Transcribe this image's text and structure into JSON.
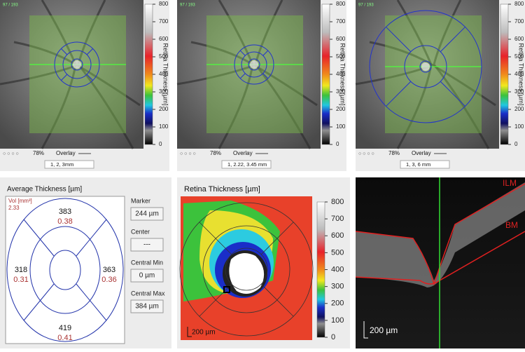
{
  "top_panels": [
    {
      "counter": "97 / 193",
      "colorbar_label": "Retina Thickness [µm]",
      "colorbar_ticks": [
        800,
        700,
        600,
        500,
        400,
        300,
        200,
        100,
        0
      ],
      "zoom": "78%",
      "overlay": "Overlay",
      "grid": "1, 2, 3mm"
    },
    {
      "counter": "97 / 193",
      "colorbar_label": "Retina Thickness [µm]",
      "colorbar_ticks": [
        800,
        700,
        600,
        500,
        400,
        300,
        200,
        100,
        0
      ],
      "zoom": "78%",
      "overlay": "Overlay",
      "grid": "1, 2.22, 3.45 mm"
    },
    {
      "counter": "97 / 193",
      "colorbar_label": "Retina Thickness [µm]",
      "colorbar_ticks": [
        800,
        700,
        600,
        500,
        400,
        300,
        200,
        100,
        0
      ],
      "zoom": "78%",
      "overlay": "Overlay",
      "grid": "1, 3, 6 mm"
    }
  ],
  "average_thickness": {
    "title": "Average Thickness [µm]",
    "vol_label": "Vol [mm³]",
    "vol": 2.33,
    "sectors": [
      {
        "thickness": 383,
        "volume": 0.38
      },
      {
        "thickness": 318,
        "volume": 0.31
      },
      {
        "thickness": 363,
        "volume": 0.36
      },
      {
        "thickness": 419,
        "volume": 0.41
      }
    ]
  },
  "fields": [
    {
      "label": "Marker",
      "value": "244 µm"
    },
    {
      "label": "Center",
      "value": "---"
    },
    {
      "label": "Central Min",
      "value": "0 µm"
    },
    {
      "label": "Central Max",
      "value": "384 µm"
    }
  ],
  "thickness_map": {
    "title": "Retina Thickness [µm]",
    "colorbar_ticks": [
      800,
      700,
      600,
      500,
      400,
      300,
      200,
      100,
      0
    ],
    "scale": "200 µm"
  },
  "bscan": {
    "labels": [
      "ILM",
      "BM"
    ],
    "scale": "200 µm"
  }
}
